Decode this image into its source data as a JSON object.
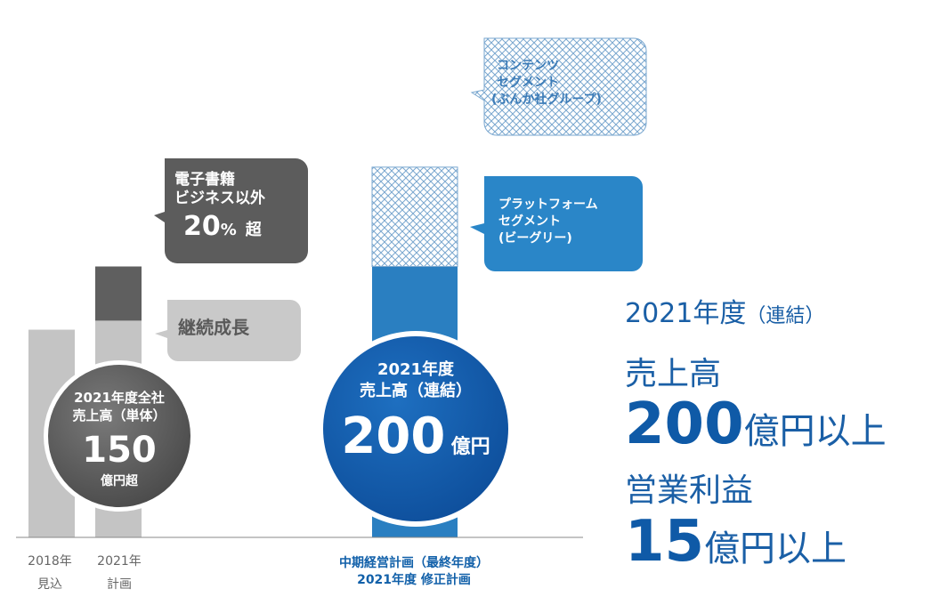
{
  "chart_data": {
    "type": "bar",
    "categories": [
      "2018年見込",
      "2021年計画",
      "中期経営計画（最終年度）2021年度 修正計画"
    ],
    "series": [
      {
        "values": [
          115,
          120,
          0
        ]
      },
      {
        "values": [
          0,
          30,
          0
        ]
      },
      {
        "name": "プラットフォーム セグメント（ビーグリー）",
        "values": [
          0,
          0,
          150
        ]
      },
      {
        "name": "コンテンツ セグメント（ぶんか社グループ）",
        "values": [
          0,
          0,
          55
        ]
      }
    ],
    "colors": {
      "gray_light": "#c4c4c4",
      "gray_dark": "#5f5f5f",
      "blue": "#2a7fc1",
      "blue_dark": "#1155a6",
      "pattern": "#7aa7cf"
    }
  },
  "labels": {
    "x1_line1": "2018年",
    "x1_line2": "見込",
    "x2_line1": "2021年",
    "x2_line2": "計画",
    "x3_line1": "中期経営計画（最終年度）",
    "x3_line2": "2021年度 修正計画"
  },
  "callouts": {
    "ebook_line1": "電子書籍",
    "ebook_line2": "ビジネス以外",
    "ebook_pct": "20",
    "ebook_pct_unit": "%",
    "ebook_over": "超",
    "growth": "継続成長",
    "content_line1": "コンテンツ",
    "content_line2": "セグメント",
    "content_line3": "(ぶんか社グループ)",
    "platform_line1": "プラットフォーム",
    "platform_line2": "セグメント",
    "platform_line3": "(ビーグリー)"
  },
  "circle_gray": {
    "line1": "2021年度全社",
    "line2": "売上高（単体）",
    "value": "150",
    "unit": "億円超"
  },
  "circle_blue": {
    "line1": "2021年度",
    "line2": "売上高（連結）",
    "value": "200",
    "unit": "億円"
  },
  "summary": {
    "year": "2021年度",
    "year_suffix": "（連結）",
    "sales_label": "売上高",
    "sales_value": "200",
    "sales_unit": "億円以上",
    "profit_label": "営業利益",
    "profit_value": "15",
    "profit_unit": "億円以上"
  }
}
